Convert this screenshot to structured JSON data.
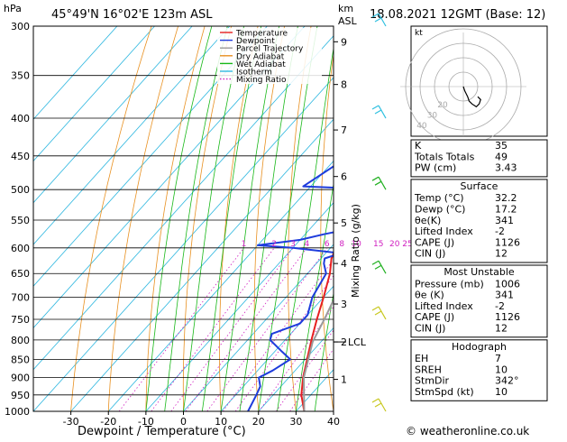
{
  "header": {
    "left_unit": "hPa",
    "location": "45°49'N  16°02'E  123m  ASL",
    "km_unit": "km",
    "asl_unit": "ASL",
    "datetime": "18.08.2021  12GMT  (Base: 12)"
  },
  "chart_data": {
    "type": "line",
    "subtype": "skew-T log-P diagram",
    "xlabel": "Dewpoint / Temperature (°C)",
    "ylabel_right": "Mixing Ratio (g/kg)",
    "x_ticks": [
      -30,
      -20,
      -10,
      0,
      10,
      20,
      30,
      40
    ],
    "xlim": [
      -40,
      40
    ],
    "ylim": [
      1000,
      300
    ],
    "y_scale": "log",
    "pressure_levels": [
      300,
      350,
      400,
      450,
      500,
      550,
      600,
      650,
      700,
      750,
      800,
      850,
      900,
      950,
      1000
    ],
    "km_ticks": [
      {
        "label": "9",
        "p": 315
      },
      {
        "label": "8",
        "p": 360
      },
      {
        "label": "7",
        "p": 415
      },
      {
        "label": "6",
        "p": 480
      },
      {
        "label": "5",
        "p": 555
      },
      {
        "label": "4",
        "p": 630
      },
      {
        "label": "3",
        "p": 715
      },
      {
        "label": "2",
        "p": 805
      },
      {
        "label": "1",
        "p": 905
      }
    ],
    "lcl": {
      "label": "LCL",
      "p": 805
    },
    "mixing_ratio_labels": [
      "1",
      "2",
      "3",
      "4",
      "6",
      "8",
      "10",
      "15",
      "20",
      "25"
    ],
    "legend": {
      "position": "top-left",
      "entries": [
        {
          "name": "Temperature",
          "color": "#e62020",
          "style": "solid"
        },
        {
          "name": "Dewpoint",
          "color": "#1e3cdc",
          "style": "solid"
        },
        {
          "name": "Parcel Trajectory",
          "color": "#9a9a9a",
          "style": "solid"
        },
        {
          "name": "Dry Adiabat",
          "color": "#e89020",
          "style": "solid"
        },
        {
          "name": "Wet Adiabat",
          "color": "#18b818",
          "style": "solid"
        },
        {
          "name": "Isotherm",
          "color": "#30b8e0",
          "style": "solid"
        },
        {
          "name": "Mixing Ratio",
          "color": "#d020c0",
          "style": "dotted"
        }
      ]
    },
    "series": [
      {
        "name": "Temperature",
        "color": "#e62020",
        "points": [
          [
            1000,
            32.2
          ],
          [
            950,
            27.5
          ],
          [
            900,
            23.8
          ],
          [
            850,
            20.5
          ],
          [
            800,
            17
          ],
          [
            750,
            13.5
          ],
          [
            700,
            10
          ],
          [
            650,
            6
          ],
          [
            620,
            2.8
          ],
          [
            600,
            1.5
          ],
          [
            550,
            -2
          ],
          [
            500,
            -6.5
          ],
          [
            450,
            -11.5
          ],
          [
            400,
            -17.5
          ],
          [
            350,
            -24.5
          ],
          [
            300,
            -33
          ]
        ]
      },
      {
        "name": "Dewpoint",
        "color": "#1e3cdc",
        "points": [
          [
            1000,
            17.2
          ],
          [
            950,
            15.5
          ],
          [
            925,
            14.5
          ],
          [
            900,
            12
          ],
          [
            880,
            14
          ],
          [
            850,
            16
          ],
          [
            830,
            12
          ],
          [
            800,
            6
          ],
          [
            785,
            5
          ],
          [
            760,
            10
          ],
          [
            740,
            10
          ],
          [
            700,
            7
          ],
          [
            650,
            5
          ],
          [
            630,
            2
          ],
          [
            620,
            1
          ],
          [
            610,
            4
          ],
          [
            600,
            -10
          ],
          [
            595,
            -20
          ],
          [
            585,
            -10
          ],
          [
            575,
            -5
          ],
          [
            560,
            4
          ],
          [
            550,
            7
          ],
          [
            500,
            0
          ],
          [
            495,
            -22
          ],
          [
            450,
            -17
          ],
          [
            400,
            -4
          ],
          [
            395,
            -8
          ],
          [
            350,
            -12
          ],
          [
            300,
            -21
          ]
        ]
      },
      {
        "name": "Parcel Trajectory",
        "color": "#9a9a9a",
        "points": [
          [
            1000,
            32.2
          ],
          [
            900,
            24
          ],
          [
            805,
            17.8
          ],
          [
            750,
            15.5
          ],
          [
            700,
            13
          ],
          [
            650,
            10
          ],
          [
            600,
            6.5
          ],
          [
            550,
            3
          ],
          [
            500,
            -1
          ],
          [
            450,
            -5.5
          ],
          [
            400,
            -11
          ],
          [
            350,
            -17.5
          ],
          [
            300,
            -26
          ]
        ]
      }
    ]
  },
  "hodograph": {
    "label": "kt",
    "ring_labels": [
      "20",
      "30",
      "40"
    ],
    "points_kt": [
      [
        0,
        0
      ],
      [
        -1,
        3
      ],
      [
        -2,
        5
      ],
      [
        -3,
        7
      ],
      [
        -4,
        10
      ],
      [
        -6,
        12
      ],
      [
        -9,
        14
      ],
      [
        -11,
        12
      ],
      [
        -12,
        9
      ],
      [
        -10,
        7
      ]
    ]
  },
  "wind_barb_colors": [
    "#30c0e0",
    "#30c0e0",
    "#20b020",
    "#20b020",
    "#c8c820",
    "#c8c820"
  ],
  "indices": [
    {
      "label": "K",
      "value": "35"
    },
    {
      "label": "Totals Totals",
      "value": "49"
    },
    {
      "label": "PW (cm)",
      "value": "3.43"
    }
  ],
  "surface": {
    "title": "Surface",
    "rows": [
      {
        "label": "Temp (°C)",
        "value": "32.2"
      },
      {
        "label": "Dewp (°C)",
        "value": "17.2"
      },
      {
        "label": "θe(K)",
        "value": "341"
      },
      {
        "label": "Lifted Index",
        "value": "-2"
      },
      {
        "label": "CAPE (J)",
        "value": "1126"
      },
      {
        "label": "CIN (J)",
        "value": "12"
      }
    ]
  },
  "most_unstable": {
    "title": "Most Unstable",
    "rows": [
      {
        "label": "Pressure (mb)",
        "value": "1006"
      },
      {
        "label": "θe (K)",
        "value": "341"
      },
      {
        "label": "Lifted Index",
        "value": "-2"
      },
      {
        "label": "CAPE (J)",
        "value": "1126"
      },
      {
        "label": "CIN (J)",
        "value": "12"
      }
    ]
  },
  "hodograph_box": {
    "title": "Hodograph",
    "rows": [
      {
        "label": "EH",
        "value": "7"
      },
      {
        "label": "SREH",
        "value": "10"
      },
      {
        "label": "StmDir",
        "value": "342°"
      },
      {
        "label": "StmSpd (kt)",
        "value": "10"
      }
    ]
  },
  "footer": "© weatheronline.co.uk"
}
